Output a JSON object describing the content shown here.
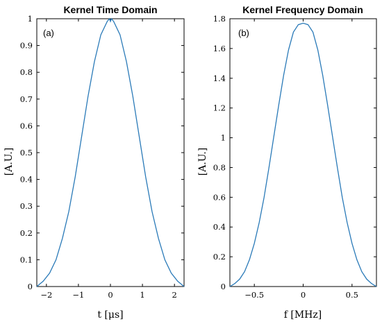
{
  "chart_data": [
    {
      "type": "line",
      "panel_label": "(a)",
      "title": "Kernel Time Domain",
      "xlabel": "t [μs]",
      "ylabel": "[A.U.]",
      "xlim": [
        -2.3,
        2.3
      ],
      "ylim": [
        0,
        1
      ],
      "xticks": [
        -2,
        -1,
        0,
        1,
        2
      ],
      "xtick_labels": [
        "−2",
        "−1",
        "0",
        "1",
        "2"
      ],
      "yticks": [
        0,
        0.1,
        0.2,
        0.3,
        0.4,
        0.5,
        0.6,
        0.7,
        0.8,
        0.9,
        1
      ],
      "ytick_labels": [
        "0",
        "0.1",
        "0.2",
        "0.3",
        "0.4",
        "0.5",
        "0.6",
        "0.7",
        "0.8",
        "0.9",
        "1"
      ],
      "grid": false,
      "series": [
        {
          "color": "#2a7ab8",
          "x": [
            -2.3,
            -2.1,
            -1.9,
            -1.7,
            -1.5,
            -1.3,
            -1.1,
            -0.9,
            -0.7,
            -0.5,
            -0.3,
            -0.1,
            -0.03,
            0,
            0.03,
            0.1,
            0.3,
            0.5,
            0.7,
            0.9,
            1.1,
            1.3,
            1.5,
            1.7,
            1.9,
            2.1,
            2.3
          ],
          "y": [
            0.0,
            0.02,
            0.05,
            0.1,
            0.18,
            0.28,
            0.41,
            0.56,
            0.71,
            0.84,
            0.94,
            0.99,
            1.0,
            0.99,
            1.0,
            0.99,
            0.94,
            0.84,
            0.71,
            0.56,
            0.41,
            0.28,
            0.18,
            0.1,
            0.05,
            0.02,
            0.0
          ]
        }
      ]
    },
    {
      "type": "line",
      "panel_label": "(b)",
      "title": "Kernel Frequency Domain",
      "xlabel": "f [MHz]",
      "ylabel": "[A.U.]",
      "xlim": [
        -0.75,
        0.75
      ],
      "ylim": [
        0,
        1.8
      ],
      "xticks": [
        -0.5,
        0,
        0.5
      ],
      "xtick_labels": [
        "−0.5",
        "0",
        "0.5"
      ],
      "yticks": [
        0,
        0.2,
        0.4,
        0.6,
        0.8,
        1,
        1.2,
        1.4,
        1.6,
        1.8
      ],
      "ytick_labels": [
        "0",
        "0.2",
        "0.4",
        "0.6",
        "0.8",
        "1",
        "1.2",
        "1.4",
        "1.6",
        "1.8"
      ],
      "grid": false,
      "series": [
        {
          "color": "#2a7ab8",
          "x": [
            -0.75,
            -0.7,
            -0.65,
            -0.6,
            -0.55,
            -0.5,
            -0.45,
            -0.4,
            -0.35,
            -0.3,
            -0.25,
            -0.2,
            -0.15,
            -0.1,
            -0.05,
            0,
            0.05,
            0.1,
            0.15,
            0.2,
            0.25,
            0.3,
            0.35,
            0.4,
            0.45,
            0.5,
            0.55,
            0.6,
            0.65,
            0.7,
            0.75
          ],
          "y": [
            0.0,
            0.02,
            0.05,
            0.1,
            0.18,
            0.29,
            0.43,
            0.6,
            0.8,
            1.01,
            1.22,
            1.42,
            1.59,
            1.71,
            1.76,
            1.77,
            1.76,
            1.71,
            1.59,
            1.42,
            1.22,
            1.01,
            0.8,
            0.6,
            0.43,
            0.29,
            0.18,
            0.1,
            0.05,
            0.02,
            0.0
          ]
        }
      ]
    }
  ]
}
